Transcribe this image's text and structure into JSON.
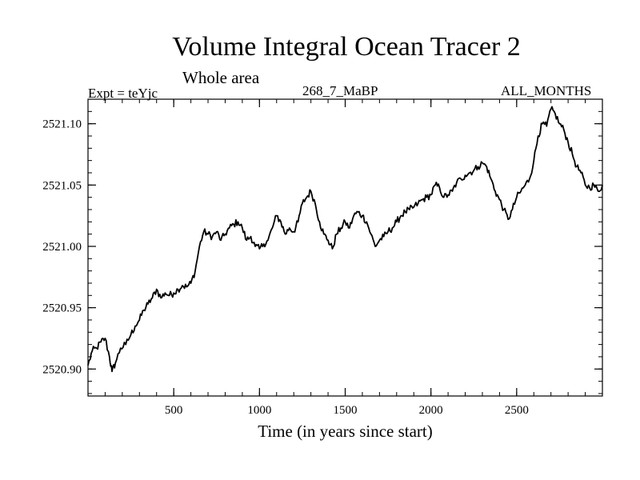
{
  "header": {
    "title": "Volume Integral Ocean Tracer 2",
    "subtitle": "Whole area",
    "experiment": "Expt = teYjc",
    "run": "268_7_MaBP",
    "months": "ALL_MONTHS"
  },
  "chart_data": {
    "type": "line",
    "title": "Volume Integral Ocean Tracer 2",
    "subtitle": "Whole area",
    "xlabel": "Time (in years since start)",
    "ylabel": "",
    "xlim": [
      0,
      3000
    ],
    "ylim": [
      2520.878,
      2521.12
    ],
    "x_ticks": [
      500,
      1000,
      1500,
      2000,
      2500
    ],
    "x_tick_labels": [
      "500",
      "1000",
      "1500",
      "2000",
      "2500"
    ],
    "y_ticks": [
      2520.9,
      2520.95,
      2521.0,
      2521.05,
      2521.1
    ],
    "y_tick_labels": [
      "2520.90",
      "2520.95",
      "2521.00",
      "2521.05",
      "2521.10"
    ],
    "grid": false,
    "series": [
      {
        "name": "Ocean Tracer 2",
        "color": "#000000",
        "x": [
          0,
          25,
          50,
          75,
          100,
          125,
          140,
          160,
          190,
          220,
          250,
          275,
          300,
          325,
          350,
          375,
          400,
          425,
          450,
          475,
          500,
          525,
          550,
          575,
          600,
          625,
          650,
          675,
          700,
          725,
          750,
          775,
          800,
          825,
          850,
          875,
          900,
          925,
          950,
          975,
          1000,
          1025,
          1050,
          1075,
          1100,
          1125,
          1150,
          1175,
          1200,
          1225,
          1250,
          1275,
          1300,
          1325,
          1350,
          1375,
          1400,
          1425,
          1450,
          1475,
          1500,
          1525,
          1550,
          1575,
          1600,
          1625,
          1650,
          1675,
          1700,
          1725,
          1750,
          1775,
          1800,
          1825,
          1850,
          1875,
          1900,
          1925,
          1950,
          1975,
          2000,
          2025,
          2050,
          2075,
          2100,
          2125,
          2150,
          2175,
          2200,
          2225,
          2250,
          2275,
          2300,
          2325,
          2350,
          2375,
          2400,
          2425,
          2450,
          2475,
          2500,
          2525,
          2550,
          2575,
          2600,
          2625,
          2650,
          2675,
          2700,
          2725,
          2750,
          2775,
          2800,
          2825,
          2850,
          2875,
          2900,
          2925,
          2950,
          2975,
          3000
        ],
        "values": [
          2520.903,
          2520.915,
          2520.917,
          2520.922,
          2520.925,
          2520.91,
          2520.898,
          2520.905,
          2520.917,
          2520.92,
          2520.928,
          2520.935,
          2520.94,
          2520.948,
          2520.953,
          2520.958,
          2520.965,
          2520.958,
          2520.962,
          2520.96,
          2520.962,
          2520.965,
          2520.968,
          2520.967,
          2520.97,
          2520.98,
          2521.0,
          2521.012,
          2521.01,
          2521.008,
          2521.012,
          2521.005,
          2521.01,
          2521.015,
          2521.018,
          2521.02,
          2521.015,
          2521.005,
          2521.008,
          2521.0,
          2520.998,
          2521.002,
          2521.005,
          2521.015,
          2521.025,
          2521.02,
          2521.01,
          2521.015,
          2521.012,
          2521.02,
          2521.035,
          2521.04,
          2521.045,
          2521.035,
          2521.02,
          2521.01,
          2521.005,
          2520.998,
          2521.01,
          2521.015,
          2521.02,
          2521.015,
          2521.025,
          2521.028,
          2521.025,
          2521.02,
          2521.01,
          2521.0,
          2521.005,
          2521.008,
          2521.012,
          2521.015,
          2521.02,
          2521.025,
          2521.028,
          2521.03,
          2521.032,
          2521.035,
          2521.038,
          2521.04,
          2521.042,
          2521.05,
          2521.048,
          2521.04,
          2521.042,
          2521.045,
          2521.052,
          2521.055,
          2521.058,
          2521.06,
          2521.062,
          2521.065,
          2521.068,
          2521.065,
          2521.055,
          2521.045,
          2521.038,
          2521.03,
          2521.022,
          2521.03,
          2521.04,
          2521.045,
          2521.05,
          2521.055,
          2521.07,
          2521.09,
          2521.1,
          2521.098,
          2521.112,
          2521.108,
          2521.1,
          2521.095,
          2521.085,
          2521.075,
          2521.065,
          2521.06,
          2521.05,
          2521.048,
          2521.05,
          2521.045,
          2521.05
        ]
      }
    ]
  }
}
